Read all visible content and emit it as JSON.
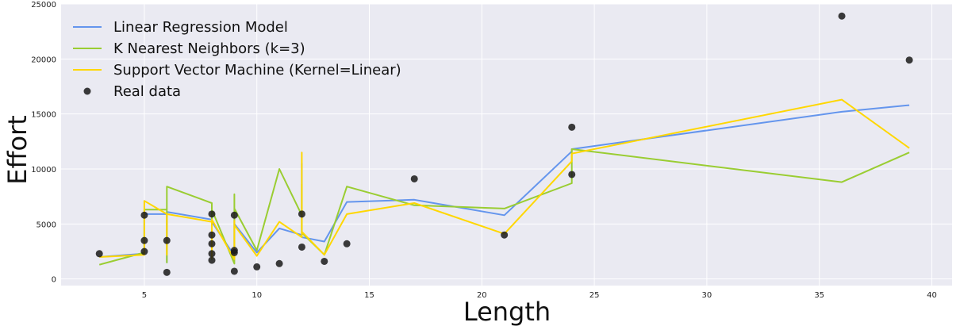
{
  "chart_data": {
    "type": "line",
    "title": "",
    "xlabel": "Length",
    "ylabel": "Effort",
    "xlim": [
      1.3,
      40.9
    ],
    "ylim": [
      -600,
      25000
    ],
    "xticks": [
      5,
      10,
      15,
      20,
      25,
      30,
      35,
      40
    ],
    "yticks": [
      0,
      5000,
      10000,
      15000,
      20000,
      25000
    ],
    "grid": true,
    "legend_position": "top-left",
    "colors": {
      "background": "#eaeaf2",
      "grid": "#ffffff",
      "linear_regression": "#6495ed",
      "knn": "#9acd32",
      "svm": "#ffd700",
      "points": "#1a1a1a"
    },
    "series": [
      {
        "name": "Linear Regression Model",
        "kind": "line",
        "x": [
          3,
          5,
          5,
          5,
          6,
          6,
          6,
          8,
          8,
          8,
          8,
          8,
          9,
          9,
          9,
          9,
          10,
          11,
          12,
          12,
          12,
          13,
          14,
          17,
          21,
          24,
          24,
          36,
          39
        ],
        "y": [
          2000,
          2300,
          2400,
          5900,
          5900,
          1500,
          6100,
          5400,
          4100,
          2000,
          2100,
          5200,
          2100,
          2800,
          5400,
          5000,
          2400,
          4600,
          4000,
          10500,
          3800,
          3400,
          7000,
          7200,
          5800,
          11600,
          11800,
          15200,
          15800
        ]
      },
      {
        "name": "K Nearest Neighbors (k=3)",
        "kind": "line",
        "x": [
          3,
          5,
          5,
          5,
          6,
          6,
          6,
          8,
          8,
          8,
          8,
          8,
          9,
          9,
          9,
          9,
          10,
          11,
          12,
          12,
          12,
          13,
          14,
          17,
          21,
          24,
          24,
          36,
          39
        ],
        "y": [
          1300,
          2400,
          2600,
          6300,
          6300,
          1500,
          8400,
          6900,
          5000,
          2300,
          1800,
          6300,
          1400,
          2100,
          7700,
          6400,
          2600,
          10000,
          5800,
          8600,
          4200,
          2200,
          8400,
          6700,
          6400,
          8700,
          11800,
          8800,
          11500
        ]
      },
      {
        "name": "Support Vector Machine (Kernel=Linear)",
        "kind": "line",
        "x": [
          3,
          5,
          5,
          5,
          6,
          6,
          6,
          8,
          8,
          8,
          8,
          8,
          9,
          9,
          9,
          9,
          10,
          11,
          12,
          12,
          12,
          13,
          14,
          17,
          21,
          24,
          24,
          36,
          39
        ],
        "y": [
          2000,
          2200,
          2400,
          7100,
          5900,
          2200,
          5900,
          5200,
          4000,
          2100,
          1900,
          5400,
          1800,
          2800,
          5300,
          4900,
          2100,
          5200,
          3800,
          11500,
          4300,
          2200,
          5900,
          6900,
          4100,
          10700,
          11400,
          16300,
          11900
        ]
      },
      {
        "name": "Real data",
        "kind": "scatter",
        "x": [
          3,
          5,
          5,
          5,
          6,
          6,
          8,
          8,
          8,
          8,
          8,
          9,
          9,
          9,
          9,
          10,
          11,
          12,
          12,
          13,
          14,
          17,
          21,
          24,
          24,
          36,
          39
        ],
        "y": [
          2300,
          5800,
          3500,
          2500,
          3500,
          600,
          5900,
          4000,
          3200,
          2300,
          1700,
          5800,
          2600,
          2400,
          700,
          1100,
          1400,
          5900,
          2900,
          1600,
          3200,
          9100,
          4000,
          13800,
          9500,
          23900,
          19900
        ]
      }
    ]
  }
}
